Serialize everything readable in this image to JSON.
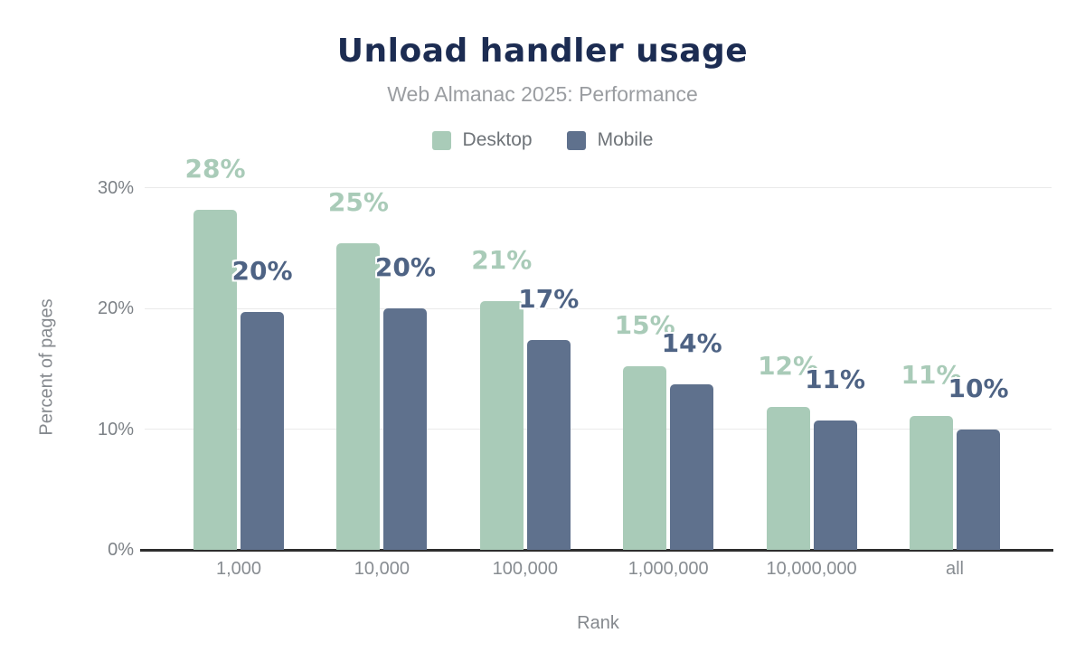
{
  "chart_data": {
    "type": "bar",
    "title": "Unload handler usage",
    "subtitle": "Web Almanac 2025: Performance",
    "categories": [
      "1,000",
      "10,000",
      "100,000",
      "1,000,000",
      "10,000,000",
      "all"
    ],
    "series": [
      {
        "name": "Desktop",
        "color": "#a9cbb8",
        "label_color": "#a9cbb8",
        "values": [
          28.2,
          25.4,
          20.6,
          15.2,
          11.8,
          11.1
        ],
        "labels": [
          "28%",
          "25%",
          "21%",
          "15%",
          "12%",
          "11%"
        ]
      },
      {
        "name": "Mobile",
        "color": "#5f718d",
        "label_color": "#4e6384",
        "values": [
          19.7,
          20.0,
          17.4,
          13.7,
          10.7,
          10.0
        ],
        "labels": [
          "20%",
          "20%",
          "17%",
          "14%",
          "11%",
          "10%"
        ]
      }
    ],
    "xlabel": "Rank",
    "ylabel": "Percent of pages",
    "ylim": [
      0,
      30
    ],
    "yticks": [
      0,
      10,
      20,
      30
    ],
    "ytick_labels": [
      "0%",
      "10%",
      "20%",
      "30%"
    ],
    "grid": "horizontal",
    "legend_position": "top",
    "colors": {
      "title": "#1c2c52",
      "subtitle": "#9a9da1",
      "axis_text": "#7d8287",
      "gridline": "#eaeaea",
      "axis_line": "#2e2e2e"
    }
  }
}
